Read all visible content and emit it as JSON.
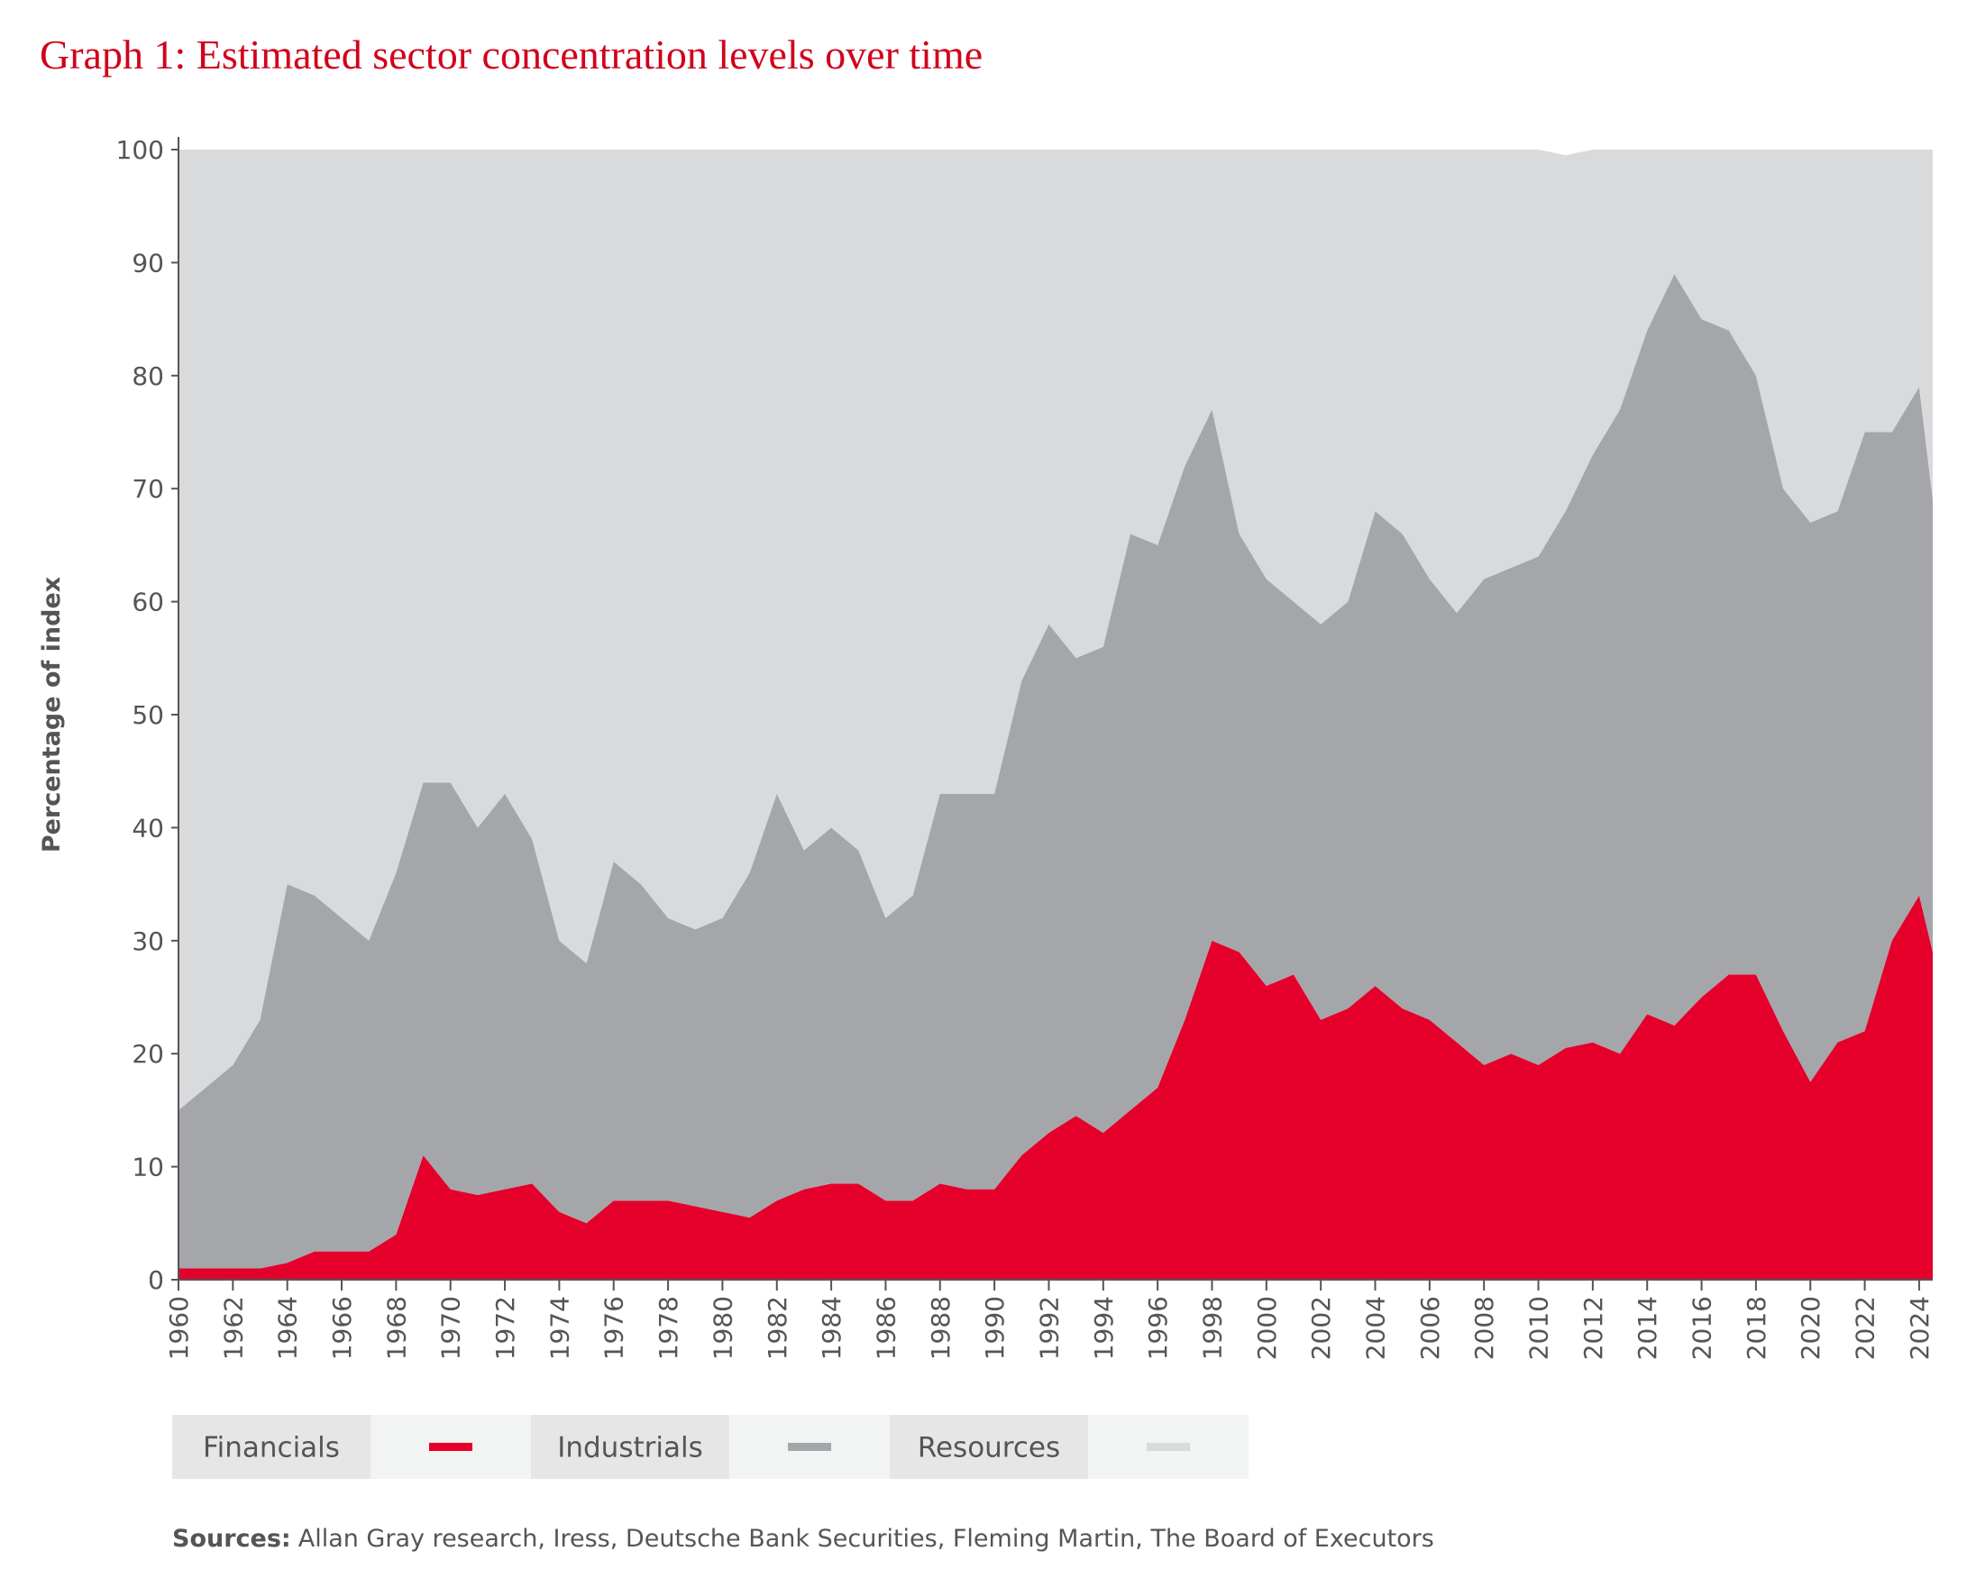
{
  "chart_data": {
    "type": "stacked-area",
    "title": "Graph 1: Estimated sector concentration levels over time",
    "y_label": "Percentage of index",
    "x": [
      1960,
      1961,
      1962,
      1963,
      1964,
      1965,
      1966,
      1967,
      1968,
      1969,
      1970,
      1971,
      1972,
      1973,
      1974,
      1975,
      1976,
      1977,
      1978,
      1979,
      1980,
      1981,
      1982,
      1983,
      1984,
      1985,
      1986,
      1987,
      1988,
      1989,
      1990,
      1991,
      1992,
      1993,
      1994,
      1995,
      1996,
      1997,
      1998,
      1999,
      2000,
      2001,
      2002,
      2003,
      2004,
      2005,
      2006,
      2007,
      2008,
      2009,
      2010,
      2011,
      2012,
      2013,
      2014,
      2015,
      2016,
      2017,
      2018,
      2019,
      2020,
      2021,
      2022,
      2023,
      2024,
      2024.5
    ],
    "series": [
      {
        "name": "Financials",
        "color": "#e4002b",
        "values": [
          1,
          1,
          1,
          1,
          1.5,
          2.5,
          2.5,
          2.5,
          4,
          11,
          8,
          7.5,
          8,
          8.5,
          6,
          5,
          7,
          7,
          7,
          6.5,
          6,
          5.5,
          7,
          8,
          8.5,
          8.5,
          7,
          7,
          8.5,
          8,
          8,
          11,
          13,
          14.5,
          13,
          15,
          17,
          23,
          30,
          29,
          26,
          27,
          23,
          24,
          26,
          24,
          23,
          21,
          19,
          20,
          19,
          20.5,
          21,
          20,
          23.5,
          22.5,
          25,
          27,
          27,
          22,
          17.5,
          21,
          22,
          30,
          34,
          29
        ]
      },
      {
        "name": "Industrials",
        "color": "#a5a6aa",
        "values": [
          14,
          16,
          18,
          22,
          33.5,
          31.5,
          29.5,
          27.5,
          32,
          33,
          36,
          32.5,
          35,
          30.5,
          24,
          23,
          30,
          28,
          25,
          24.5,
          26,
          30.5,
          36,
          30,
          31.5,
          29.5,
          25,
          27,
          34.5,
          35,
          35,
          42,
          45,
          40.5,
          43,
          51,
          48,
          49,
          47,
          37,
          36,
          33,
          35,
          36,
          42,
          42,
          39,
          38,
          43,
          43,
          45,
          47.5,
          52,
          57,
          60.5,
          66.5,
          60,
          57,
          53,
          48,
          49.5,
          47,
          53,
          45,
          45,
          40
        ]
      },
      {
        "name": "Resources",
        "color": "#d9dadc",
        "values": [
          85,
          83,
          81,
          77,
          65,
          66,
          68,
          70,
          64,
          56,
          56,
          60,
          57,
          61,
          70,
          72,
          63,
          65,
          68,
          69,
          68,
          64,
          57,
          62,
          60,
          62,
          68,
          66,
          57,
          57,
          57,
          47,
          42,
          45,
          44,
          34,
          35,
          28,
          23,
          34,
          38,
          40,
          42,
          40,
          32,
          34,
          38,
          41,
          38,
          37,
          36,
          31.5,
          27,
          23,
          16,
          11,
          15,
          16,
          20,
          30,
          33,
          32,
          25,
          25,
          21,
          31
        ]
      }
    ],
    "xlim": [
      1960,
      2024.5
    ],
    "xticks": [
      1960,
      1962,
      1964,
      1966,
      1968,
      1970,
      1972,
      1974,
      1976,
      1978,
      1980,
      1982,
      1984,
      1986,
      1988,
      1990,
      1992,
      1994,
      1996,
      1998,
      2000,
      2002,
      2004,
      2006,
      2008,
      2010,
      2012,
      2014,
      2016,
      2018,
      2020,
      2022,
      2024
    ],
    "ylim": [
      0,
      100
    ],
    "yticks": [
      0,
      10,
      20,
      30,
      40,
      50,
      60,
      70,
      80,
      90,
      100
    ],
    "legend": "bottom-left",
    "sources_label": "Sources:",
    "sources": "Allan Gray research, Iress, Deutsche Bank Securities, Fleming Martin, The Board of Executors"
  }
}
